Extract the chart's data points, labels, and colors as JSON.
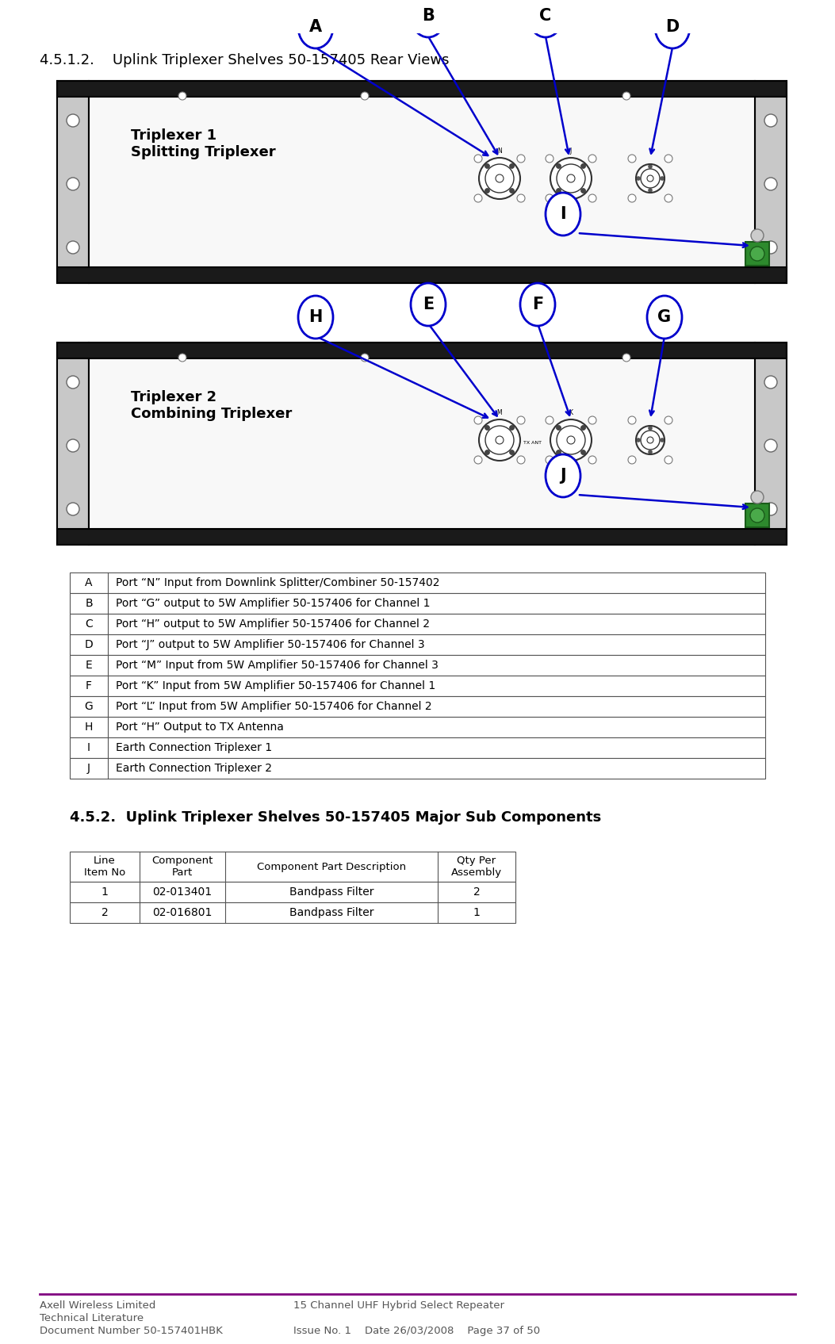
{
  "title_section": "4.5.1.2.    Uplink Triplexer Shelves 50-157405 Rear Views",
  "section2_title": "4.5.2.  Uplink Triplexer Shelves 50-157405 Major Sub Components",
  "bg_color": "#ffffff",
  "triplexer1_label": "Triplexer 1\nSplitting Triplexer",
  "triplexer2_label": "Triplexer 2\nCombining Triplexer",
  "table_rows": [
    [
      "A",
      "Port “N” Input from Downlink Splitter/Combiner 50-157402"
    ],
    [
      "B",
      "Port “G” output to 5W Amplifier 50-157406 for Channel 1"
    ],
    [
      "C",
      "Port “H” output to 5W Amplifier 50-157406 for Channel 2"
    ],
    [
      "D",
      "Port “J” output to 5W Amplifier 50-157406 for Channel 3"
    ],
    [
      "E",
      "Port “M” Input from 5W Amplifier 50-157406 for Channel 3"
    ],
    [
      "F",
      "Port “K” Input from 5W Amplifier 50-157406 for Channel 1"
    ],
    [
      "G",
      "Port “L” Input from 5W Amplifier 50-157406 for Channel 2"
    ],
    [
      "H",
      "Port “H” Output to TX Antenna"
    ],
    [
      "I",
      "Earth Connection Triplexer 1"
    ],
    [
      "J",
      "Earth Connection Triplexer 2"
    ]
  ],
  "comp_table_headers": [
    "Line\nItem No",
    "Component\nPart",
    "Component Part Description",
    "Qty Per\nAssembly"
  ],
  "comp_table_rows": [
    [
      "1",
      "02-013401",
      "Bandpass Filter",
      "2"
    ],
    [
      "2",
      "02-016801",
      "Bandpass Filter",
      "1"
    ]
  ],
  "footer_left1": "Axell Wireless Limited",
  "footer_left2": "Technical Literature",
  "footer_left3": "Document Number 50-157401HBK",
  "footer_center": "15 Channel UHF Hybrid Select Repeater",
  "footer_right": "Issue No. 1    Date 26/03/2008    Page 37 of 50",
  "footer_line_color": "#800080",
  "blue_color": "#0000cc"
}
